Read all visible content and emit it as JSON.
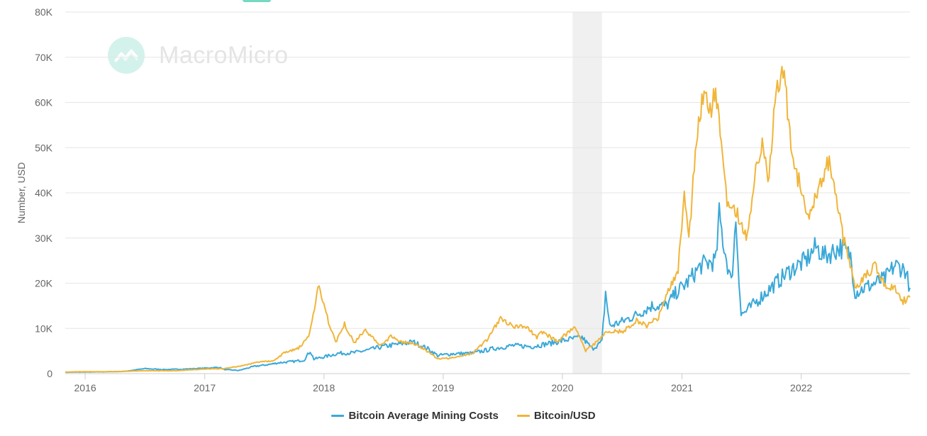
{
  "watermark": {
    "brand": "MacroMicro",
    "logo_icon": "macromicro-logo-icon"
  },
  "chart_data": {
    "type": "line",
    "title": "",
    "ylabel": "Number, USD",
    "xlabel": "",
    "x_range": [
      "2015-11-01",
      "2022-11-30"
    ],
    "ylim": [
      0,
      80000
    ],
    "y_ticks": [
      0,
      10000,
      20000,
      30000,
      40000,
      50000,
      60000,
      70000,
      80000
    ],
    "y_tick_labels": [
      "0",
      "10K",
      "20K",
      "30K",
      "40K",
      "50K",
      "60K",
      "70K",
      "80K"
    ],
    "x_tick_labels": [
      "2016",
      "2017",
      "2018",
      "2019",
      "2020",
      "2021",
      "2022"
    ],
    "grid": "horizontal",
    "legend_position": "bottom-center",
    "shaded_ranges": [
      {
        "start": "2020-02-01",
        "end": "2020-05-01",
        "color": "#e6e6e6"
      }
    ],
    "series": [
      {
        "name": "Bitcoin Average Mining Costs",
        "color": "#3aa8d8",
        "points": [
          [
            "2015-11-01",
            300
          ],
          [
            "2016-01-01",
            350
          ],
          [
            "2016-03-01",
            400
          ],
          [
            "2016-05-01",
            500
          ],
          [
            "2016-07-01",
            1100
          ],
          [
            "2016-09-01",
            900
          ],
          [
            "2016-11-01",
            1000
          ],
          [
            "2017-01-01",
            1200
          ],
          [
            "2017-02-15",
            1400
          ],
          [
            "2017-03-01",
            900
          ],
          [
            "2017-04-15",
            700
          ],
          [
            "2017-06-01",
            1600
          ],
          [
            "2017-07-15",
            2000
          ],
          [
            "2017-08-15",
            2400
          ],
          [
            "2017-10-01",
            2700
          ],
          [
            "2017-11-01",
            3000
          ],
          [
            "2017-11-20",
            5000
          ],
          [
            "2017-12-01",
            3200
          ],
          [
            "2018-01-01",
            3700
          ],
          [
            "2018-02-15",
            4500
          ],
          [
            "2018-04-01",
            4600
          ],
          [
            "2018-05-15",
            5200
          ],
          [
            "2018-07-01",
            6000
          ],
          [
            "2018-08-15",
            6500
          ],
          [
            "2018-10-01",
            7000
          ],
          [
            "2018-11-15",
            5500
          ],
          [
            "2018-12-15",
            4000
          ],
          [
            "2019-02-01",
            4400
          ],
          [
            "2019-04-01",
            4500
          ],
          [
            "2019-06-01",
            5500
          ],
          [
            "2019-08-01",
            6200
          ],
          [
            "2019-10-01",
            6000
          ],
          [
            "2019-12-01",
            6800
          ],
          [
            "2020-01-15",
            7500
          ],
          [
            "2020-03-01",
            8000
          ],
          [
            "2020-04-01",
            5500
          ],
          [
            "2020-05-01",
            7000
          ],
          [
            "2020-05-12",
            18000
          ],
          [
            "2020-05-25",
            10500
          ],
          [
            "2020-07-01",
            11500
          ],
          [
            "2020-08-15",
            13000
          ],
          [
            "2020-10-01",
            15000
          ],
          [
            "2020-11-15",
            15000
          ],
          [
            "2020-12-15",
            18000
          ],
          [
            "2021-01-15",
            20000
          ],
          [
            "2021-03-01",
            24000
          ],
          [
            "2021-04-15",
            25000
          ],
          [
            "2021-04-25",
            35000
          ],
          [
            "2021-05-10",
            28000
          ],
          [
            "2021-06-01",
            20000
          ],
          [
            "2021-06-15",
            34000
          ],
          [
            "2021-07-01",
            13000
          ],
          [
            "2021-07-20",
            14000
          ],
          [
            "2021-09-01",
            17000
          ],
          [
            "2021-10-15",
            20000
          ],
          [
            "2021-12-01",
            23000
          ],
          [
            "2022-01-15",
            25000
          ],
          [
            "2022-02-15",
            28000
          ],
          [
            "2022-03-15",
            26000
          ],
          [
            "2022-05-01",
            28000
          ],
          [
            "2022-06-01",
            26000
          ],
          [
            "2022-06-15",
            18000
          ],
          [
            "2022-07-15",
            19000
          ],
          [
            "2022-08-15",
            20000
          ],
          [
            "2022-09-15",
            21000
          ],
          [
            "2022-10-15",
            24000
          ],
          [
            "2022-11-15",
            23000
          ],
          [
            "2022-11-30",
            19000
          ]
        ]
      },
      {
        "name": "Bitcoin/USD",
        "color": "#f0b53a",
        "points": [
          [
            "2015-11-01",
            350
          ],
          [
            "2016-01-01",
            430
          ],
          [
            "2016-04-01",
            420
          ],
          [
            "2016-07-01",
            650
          ],
          [
            "2016-10-01",
            620
          ],
          [
            "2017-01-01",
            1000
          ],
          [
            "2017-03-01",
            1100
          ],
          [
            "2017-05-01",
            1800
          ],
          [
            "2017-06-15",
            2600
          ],
          [
            "2017-08-01",
            2800
          ],
          [
            "2017-09-01",
            4600
          ],
          [
            "2017-10-15",
            5600
          ],
          [
            "2017-11-15",
            8000
          ],
          [
            "2017-12-17",
            19500
          ],
          [
            "2018-01-15",
            11500
          ],
          [
            "2018-02-06",
            7000
          ],
          [
            "2018-03-05",
            11000
          ],
          [
            "2018-04-05",
            6800
          ],
          [
            "2018-05-05",
            9700
          ],
          [
            "2018-06-25",
            6200
          ],
          [
            "2018-07-25",
            8200
          ],
          [
            "2018-09-01",
            7000
          ],
          [
            "2018-10-15",
            6400
          ],
          [
            "2018-11-20",
            4500
          ],
          [
            "2018-12-15",
            3300
          ],
          [
            "2019-02-01",
            3500
          ],
          [
            "2019-04-01",
            4500
          ],
          [
            "2019-05-15",
            7500
          ],
          [
            "2019-06-26",
            12500
          ],
          [
            "2019-08-01",
            10500
          ],
          [
            "2019-09-15",
            10200
          ],
          [
            "2019-10-15",
            8000
          ],
          [
            "2019-11-01",
            9200
          ],
          [
            "2019-12-15",
            7200
          ],
          [
            "2020-02-10",
            10200
          ],
          [
            "2020-03-12",
            5000
          ],
          [
            "2020-04-15",
            7000
          ],
          [
            "2020-05-20",
            9500
          ],
          [
            "2020-07-01",
            9200
          ],
          [
            "2020-08-15",
            11800
          ],
          [
            "2020-09-15",
            10500
          ],
          [
            "2020-10-21",
            12500
          ],
          [
            "2020-11-20",
            18500
          ],
          [
            "2020-12-20",
            23000
          ],
          [
            "2021-01-08",
            40000
          ],
          [
            "2021-01-22",
            30000
          ],
          [
            "2021-02-21",
            57000
          ],
          [
            "2021-03-13",
            61000
          ],
          [
            "2021-04-01",
            58500
          ],
          [
            "2021-04-14",
            63500
          ],
          [
            "2021-05-19",
            37000
          ],
          [
            "2021-06-20",
            35000
          ],
          [
            "2021-07-20",
            30000
          ],
          [
            "2021-08-15",
            46000
          ],
          [
            "2021-09-07",
            52000
          ],
          [
            "2021-09-21",
            41000
          ],
          [
            "2021-10-20",
            65000
          ],
          [
            "2021-11-10",
            67500
          ],
          [
            "2021-12-04",
            48000
          ],
          [
            "2022-01-22",
            35000
          ],
          [
            "2022-03-28",
            47500
          ],
          [
            "2022-05-10",
            30000
          ],
          [
            "2022-06-18",
            19000
          ],
          [
            "2022-08-15",
            24000
          ],
          [
            "2022-09-15",
            19500
          ],
          [
            "2022-10-15",
            19200
          ],
          [
            "2022-11-09",
            16000
          ],
          [
            "2022-11-30",
            16900
          ]
        ]
      }
    ]
  }
}
